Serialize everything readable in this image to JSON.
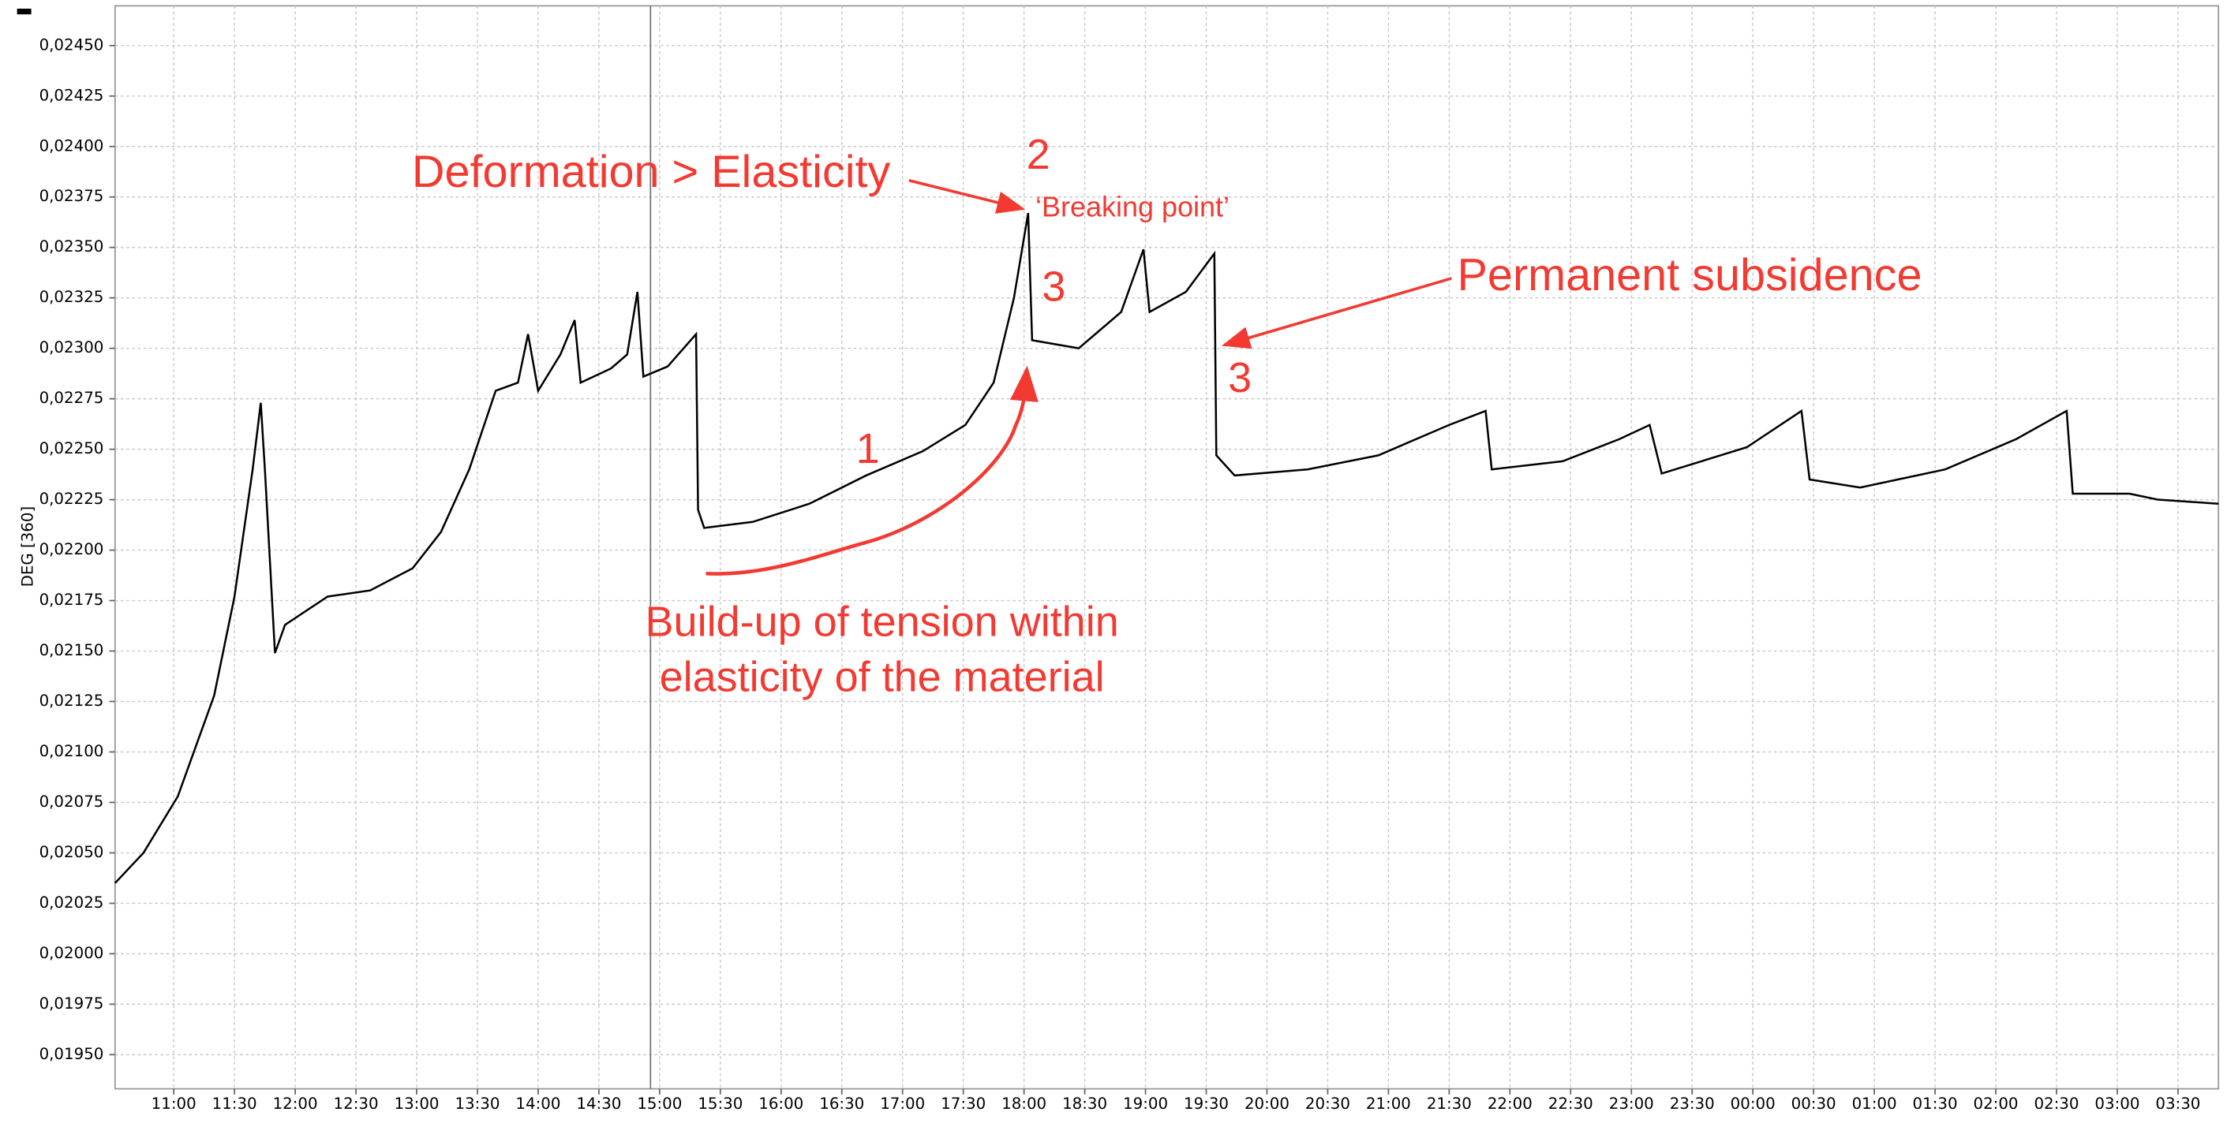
{
  "chart_data": {
    "type": "line",
    "y_label": "DEG [360]",
    "x": [
      631,
      645,
      662,
      680,
      690,
      699,
      703,
      705,
      710,
      715,
      736,
      757,
      778,
      792,
      806,
      819,
      830,
      835,
      840,
      851,
      858,
      861,
      876,
      884,
      889,
      892,
      904,
      918,
      919,
      922,
      946,
      974,
      1002,
      1030,
      1051,
      1065,
      1075,
      1082,
      1084,
      1107,
      1128,
      1139,
      1142,
      1160,
      1174,
      1175,
      1184,
      1220,
      1255,
      1290,
      1308,
      1311,
      1346,
      1374,
      1389,
      1395,
      1437,
      1464,
      1468,
      1493,
      1535,
      1570,
      1595,
      1598,
      1626,
      1640,
      1670
    ],
    "series": [
      {
        "name": "DEG",
        "color": "#000000",
        "values": [
          0.02035,
          0.0205,
          0.02078,
          0.02128,
          0.02177,
          0.0224,
          0.02273,
          0.0224,
          0.02149,
          0.02163,
          0.02177,
          0.0218,
          0.02191,
          0.02209,
          0.0224,
          0.02279,
          0.02283,
          0.02307,
          0.02279,
          0.02297,
          0.02314,
          0.02283,
          0.0229,
          0.02297,
          0.02328,
          0.02286,
          0.02291,
          0.02307,
          0.0222,
          0.02211,
          0.02214,
          0.02223,
          0.02237,
          0.02249,
          0.02262,
          0.02283,
          0.02325,
          0.02367,
          0.02304,
          0.023,
          0.02318,
          0.02349,
          0.02318,
          0.02328,
          0.02347,
          0.02247,
          0.02237,
          0.0224,
          0.02247,
          0.02262,
          0.02269,
          0.0224,
          0.02244,
          0.02255,
          0.02262,
          0.02238,
          0.02251,
          0.02269,
          0.02235,
          0.02231,
          0.0224,
          0.02255,
          0.02269,
          0.02228,
          0.02228,
          0.02225,
          0.02223
        ]
      }
    ],
    "xlim": [
      631,
      1670
    ],
    "ylim": [
      0.019331,
      0.024697
    ],
    "xticks": [
      {
        "value": 660,
        "label": "11:00"
      },
      {
        "value": 690,
        "label": "11:30"
      },
      {
        "value": 720,
        "label": "12:00"
      },
      {
        "value": 750,
        "label": "12:30"
      },
      {
        "value": 780,
        "label": "13:00"
      },
      {
        "value": 810,
        "label": "13:30"
      },
      {
        "value": 840,
        "label": "14:00"
      },
      {
        "value": 870,
        "label": "14:30"
      },
      {
        "value": 900,
        "label": "15:00"
      },
      {
        "value": 930,
        "label": "15:30"
      },
      {
        "value": 960,
        "label": "16:00"
      },
      {
        "value": 990,
        "label": "16:30"
      },
      {
        "value": 1020,
        "label": "17:00"
      },
      {
        "value": 1050,
        "label": "17:30"
      },
      {
        "value": 1080,
        "label": "18:00"
      },
      {
        "value": 1110,
        "label": "18:30"
      },
      {
        "value": 1140,
        "label": "19:00"
      },
      {
        "value": 1170,
        "label": "19:30"
      },
      {
        "value": 1200,
        "label": "20:00"
      },
      {
        "value": 1230,
        "label": "20:30"
      },
      {
        "value": 1260,
        "label": "21:00"
      },
      {
        "value": 1290,
        "label": "21:30"
      },
      {
        "value": 1320,
        "label": "22:00"
      },
      {
        "value": 1350,
        "label": "22:30"
      },
      {
        "value": 1380,
        "label": "23:00"
      },
      {
        "value": 1410,
        "label": "23:30"
      },
      {
        "value": 1440,
        "label": "00:00"
      },
      {
        "value": 1470,
        "label": "00:30"
      },
      {
        "value": 1500,
        "label": "01:00"
      },
      {
        "value": 1530,
        "label": "01:30"
      },
      {
        "value": 1560,
        "label": "02:00"
      },
      {
        "value": 1590,
        "label": "02:30"
      },
      {
        "value": 1620,
        "label": "03:00"
      },
      {
        "value": 1650,
        "label": "03:30"
      }
    ],
    "yticks": [
      {
        "value": 0.0195,
        "label": "0,01950"
      },
      {
        "value": 0.01975,
        "label": "0,01975"
      },
      {
        "value": 0.02,
        "label": "0,02000"
      },
      {
        "value": 0.02025,
        "label": "0,02025"
      },
      {
        "value": 0.0205,
        "label": "0,02050"
      },
      {
        "value": 0.02075,
        "label": "0,02075"
      },
      {
        "value": 0.021,
        "label": "0,02100"
      },
      {
        "value": 0.02125,
        "label": "0,02125"
      },
      {
        "value": 0.0215,
        "label": "0,02150"
      },
      {
        "value": 0.02175,
        "label": "0,02175"
      },
      {
        "value": 0.022,
        "label": "0,02200"
      },
      {
        "value": 0.02225,
        "label": "0,02225"
      },
      {
        "value": 0.0225,
        "label": "0,02250"
      },
      {
        "value": 0.02275,
        "label": "0,02275"
      },
      {
        "value": 0.023,
        "label": "0,02300"
      },
      {
        "value": 0.02325,
        "label": "0,02325"
      },
      {
        "value": 0.0235,
        "label": "0,02350"
      },
      {
        "value": 0.02375,
        "label": "0,02375"
      },
      {
        "value": 0.024,
        "label": "0,02400"
      },
      {
        "value": 0.02425,
        "label": "0,02425"
      },
      {
        "value": 0.0245,
        "label": "0,02450"
      }
    ],
    "grid": true,
    "annotations": [
      "Deformation > Elasticity",
      "2",
      "‘Breaking point’",
      "3",
      "3",
      "Permanent subsidence",
      "1",
      "Build-up of tension within",
      "elasticity of the material"
    ]
  }
}
